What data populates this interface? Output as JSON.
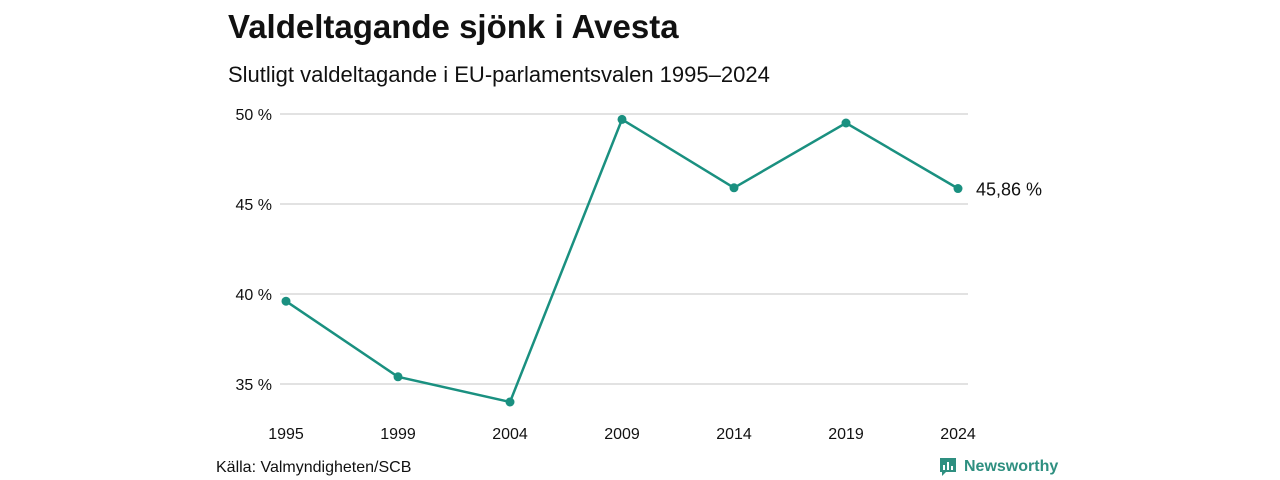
{
  "header": {
    "title": "Valdeltagande sjönk i Avesta",
    "subtitle": "Slutligt valdeltagande i EU-parlamentsvalen 1995–2024"
  },
  "footer": {
    "source": "Källa: Valmyndigheten/SCB",
    "brand": "Newsworthy",
    "brand_icon": "newsworthy-logo-icon"
  },
  "colors": {
    "line": "#1a9080",
    "grid": "#d9d9d9",
    "brand": "#2e8f80"
  },
  "chart_data": {
    "type": "line",
    "title": "Valdeltagande sjönk i Avesta",
    "subtitle": "Slutligt valdeltagande i EU-parlamentsvalen 1995–2024",
    "x": [
      "1995",
      "1999",
      "2004",
      "2009",
      "2014",
      "2019",
      "2024"
    ],
    "series": [
      {
        "values": [
          39.6,
          35.4,
          34.0,
          49.7,
          45.9,
          49.5,
          45.86
        ]
      }
    ],
    "ylim": [
      35,
      50
    ],
    "yticks": [
      35,
      40,
      45,
      50
    ],
    "ytick_labels": [
      "35 %",
      "40 %",
      "45 %",
      "50 %"
    ],
    "end_label": "45,86 %",
    "grid": true,
    "legend": "none"
  }
}
